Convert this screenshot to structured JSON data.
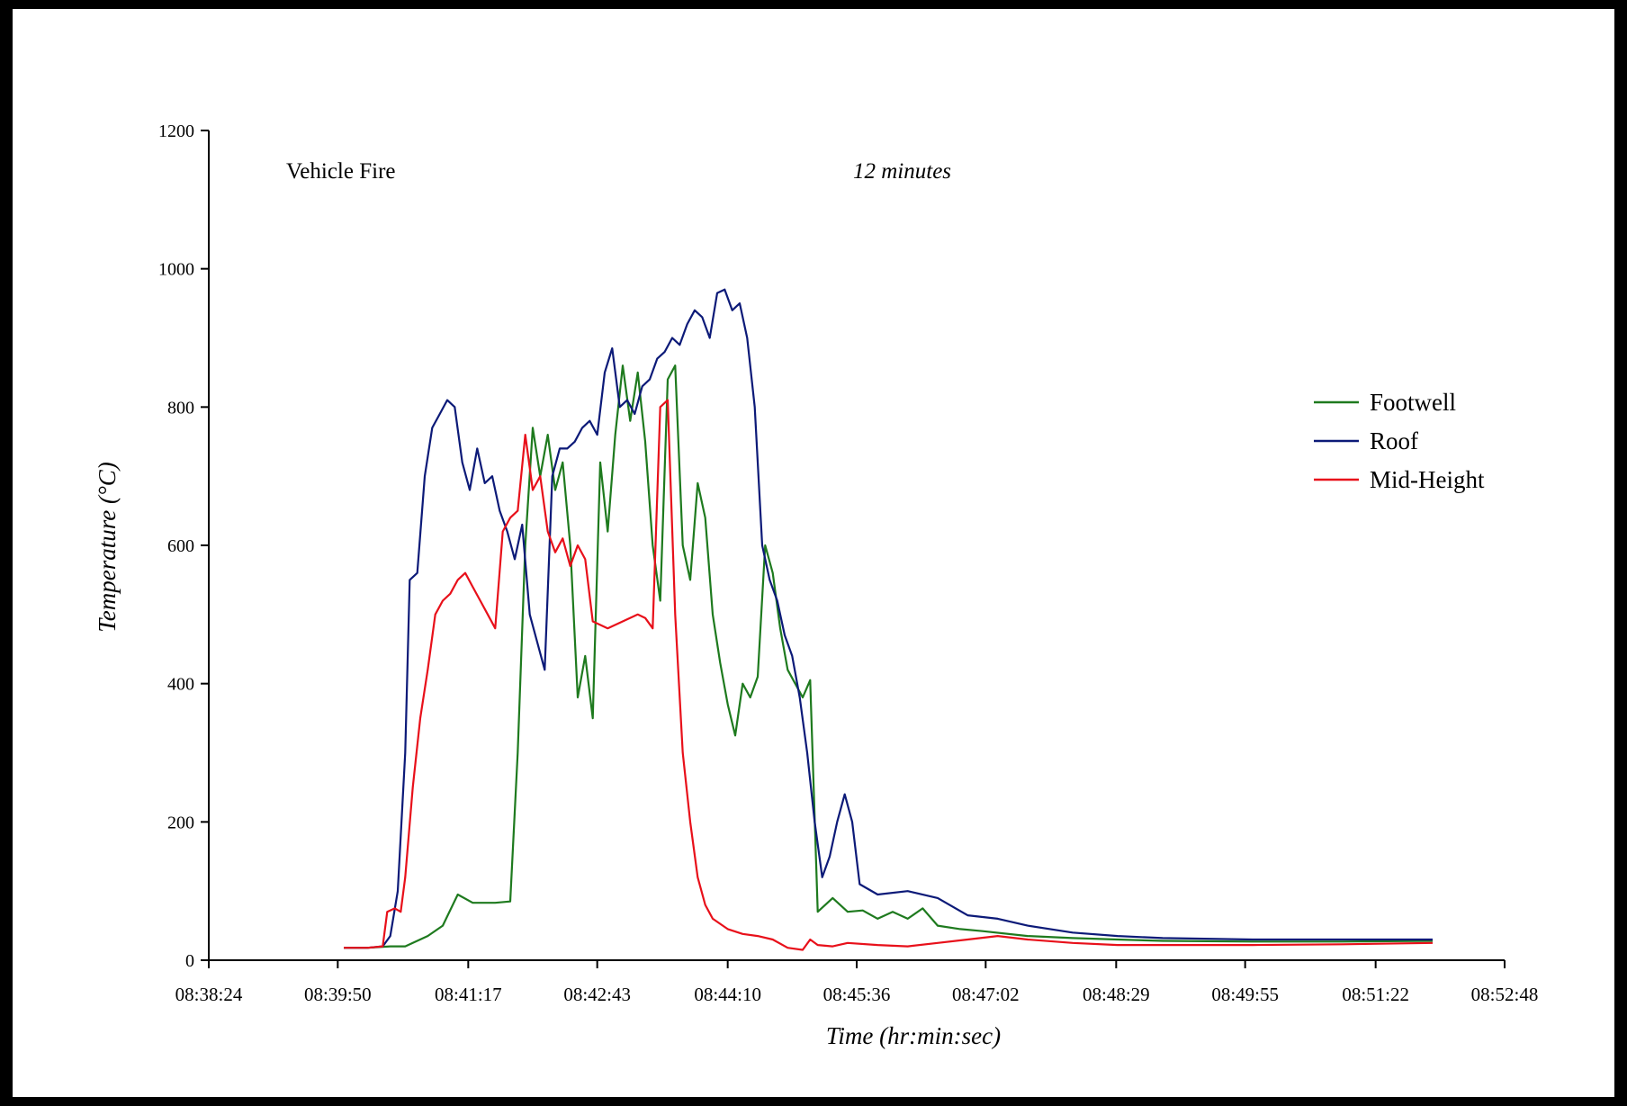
{
  "colors": {
    "Footwell": "#1e7a1e",
    "Roof": "#0c1a78",
    "Mid-Height": "#e8101a",
    "axis": "#000000",
    "frame": "#000000"
  },
  "chart_data": {
    "type": "line",
    "title": "Vehicle Fire",
    "subtitle": "12 minutes",
    "xlabel": "Time (hr:min:sec)",
    "ylabel": "Temperature (°C)",
    "ylim": [
      0,
      1200
    ],
    "yticks": [
      "0",
      "200",
      "400",
      "600",
      "800",
      "1000",
      "1200"
    ],
    "xticks": [
      "08:38:24",
      "08:39:50",
      "08:41:17",
      "08:42:43",
      "08:44:10",
      "08:45:36",
      "08:47:02",
      "08:48:29",
      "08:49:55",
      "08:51:22",
      "08:52:48"
    ],
    "xlim": [
      "08:38:24",
      "08:52:48"
    ],
    "grid": false,
    "legend_position": "right",
    "series": [
      {
        "name": "Footwell",
        "points": [
          [
            "08:39:54",
            18
          ],
          [
            "08:40:10",
            18
          ],
          [
            "08:40:25",
            20
          ],
          [
            "08:40:35",
            20
          ],
          [
            "08:40:50",
            35
          ],
          [
            "08:41:00",
            50
          ],
          [
            "08:41:10",
            95
          ],
          [
            "08:41:20",
            83
          ],
          [
            "08:41:35",
            83
          ],
          [
            "08:41:45",
            85
          ],
          [
            "08:41:50",
            300
          ],
          [
            "08:41:55",
            600
          ],
          [
            "08:42:00",
            770
          ],
          [
            "08:42:05",
            700
          ],
          [
            "08:42:10",
            760
          ],
          [
            "08:42:15",
            680
          ],
          [
            "08:42:20",
            720
          ],
          [
            "08:42:25",
            600
          ],
          [
            "08:42:30",
            380
          ],
          [
            "08:42:35",
            440
          ],
          [
            "08:42:40",
            350
          ],
          [
            "08:42:45",
            720
          ],
          [
            "08:42:50",
            620
          ],
          [
            "08:42:55",
            760
          ],
          [
            "08:43:00",
            860
          ],
          [
            "08:43:05",
            780
          ],
          [
            "08:43:10",
            850
          ],
          [
            "08:43:15",
            750
          ],
          [
            "08:43:20",
            600
          ],
          [
            "08:43:25",
            520
          ],
          [
            "08:43:30",
            840
          ],
          [
            "08:43:35",
            860
          ],
          [
            "08:43:40",
            600
          ],
          [
            "08:43:45",
            550
          ],
          [
            "08:43:50",
            690
          ],
          [
            "08:43:55",
            640
          ],
          [
            "08:44:00",
            500
          ],
          [
            "08:44:05",
            430
          ],
          [
            "08:44:10",
            370
          ],
          [
            "08:44:15",
            325
          ],
          [
            "08:44:20",
            400
          ],
          [
            "08:44:25",
            380
          ],
          [
            "08:44:30",
            410
          ],
          [
            "08:44:35",
            600
          ],
          [
            "08:44:40",
            560
          ],
          [
            "08:44:45",
            480
          ],
          [
            "08:44:50",
            420
          ],
          [
            "08:44:55",
            400
          ],
          [
            "08:45:00",
            380
          ],
          [
            "08:45:05",
            405
          ],
          [
            "08:45:10",
            70
          ],
          [
            "08:45:20",
            90
          ],
          [
            "08:45:30",
            70
          ],
          [
            "08:45:40",
            72
          ],
          [
            "08:45:50",
            60
          ],
          [
            "08:46:00",
            70
          ],
          [
            "08:46:10",
            60
          ],
          [
            "08:46:20",
            75
          ],
          [
            "08:46:30",
            50
          ],
          [
            "08:46:45",
            45
          ],
          [
            "08:47:00",
            42
          ],
          [
            "08:47:30",
            35
          ],
          [
            "08:48:00",
            32
          ],
          [
            "08:48:30",
            30
          ],
          [
            "08:49:00",
            28
          ],
          [
            "08:50:00",
            27
          ],
          [
            "08:51:00",
            27
          ],
          [
            "08:52:00",
            28
          ]
        ]
      },
      {
        "name": "Roof",
        "points": [
          [
            "08:39:54",
            18
          ],
          [
            "08:40:10",
            18
          ],
          [
            "08:40:20",
            20
          ],
          [
            "08:40:25",
            35
          ],
          [
            "08:40:30",
            100
          ],
          [
            "08:40:35",
            300
          ],
          [
            "08:40:38",
            550
          ],
          [
            "08:40:43",
            560
          ],
          [
            "08:40:48",
            700
          ],
          [
            "08:40:53",
            770
          ],
          [
            "08:40:58",
            790
          ],
          [
            "08:41:03",
            810
          ],
          [
            "08:41:08",
            800
          ],
          [
            "08:41:13",
            720
          ],
          [
            "08:41:18",
            680
          ],
          [
            "08:41:23",
            740
          ],
          [
            "08:41:28",
            690
          ],
          [
            "08:41:33",
            700
          ],
          [
            "08:41:38",
            650
          ],
          [
            "08:41:43",
            620
          ],
          [
            "08:41:48",
            580
          ],
          [
            "08:41:53",
            630
          ],
          [
            "08:41:58",
            500
          ],
          [
            "08:42:03",
            460
          ],
          [
            "08:42:08",
            420
          ],
          [
            "08:42:13",
            700
          ],
          [
            "08:42:18",
            740
          ],
          [
            "08:42:23",
            740
          ],
          [
            "08:42:28",
            750
          ],
          [
            "08:42:33",
            770
          ],
          [
            "08:42:38",
            780
          ],
          [
            "08:42:43",
            760
          ],
          [
            "08:42:48",
            850
          ],
          [
            "08:42:53",
            885
          ],
          [
            "08:42:58",
            800
          ],
          [
            "08:43:03",
            810
          ],
          [
            "08:43:08",
            790
          ],
          [
            "08:43:13",
            830
          ],
          [
            "08:43:18",
            840
          ],
          [
            "08:43:23",
            870
          ],
          [
            "08:43:28",
            880
          ],
          [
            "08:43:33",
            900
          ],
          [
            "08:43:38",
            890
          ],
          [
            "08:43:43",
            920
          ],
          [
            "08:43:48",
            940
          ],
          [
            "08:43:53",
            930
          ],
          [
            "08:43:58",
            900
          ],
          [
            "08:44:03",
            965
          ],
          [
            "08:44:08",
            970
          ],
          [
            "08:44:13",
            940
          ],
          [
            "08:44:18",
            950
          ],
          [
            "08:44:23",
            900
          ],
          [
            "08:44:28",
            800
          ],
          [
            "08:44:33",
            600
          ],
          [
            "08:44:38",
            550
          ],
          [
            "08:44:43",
            520
          ],
          [
            "08:44:48",
            470
          ],
          [
            "08:44:53",
            440
          ],
          [
            "08:44:58",
            380
          ],
          [
            "08:45:03",
            300
          ],
          [
            "08:45:08",
            200
          ],
          [
            "08:45:13",
            120
          ],
          [
            "08:45:18",
            150
          ],
          [
            "08:45:23",
            200
          ],
          [
            "08:45:28",
            240
          ],
          [
            "08:45:33",
            200
          ],
          [
            "08:45:38",
            110
          ],
          [
            "08:45:50",
            95
          ],
          [
            "08:46:10",
            100
          ],
          [
            "08:46:30",
            90
          ],
          [
            "08:46:50",
            65
          ],
          [
            "08:47:10",
            60
          ],
          [
            "08:47:30",
            50
          ],
          [
            "08:48:00",
            40
          ],
          [
            "08:48:30",
            35
          ],
          [
            "08:49:00",
            32
          ],
          [
            "08:50:00",
            30
          ],
          [
            "08:51:00",
            30
          ],
          [
            "08:52:00",
            30
          ]
        ]
      },
      {
        "name": "Mid-Height",
        "points": [
          [
            "08:39:54",
            18
          ],
          [
            "08:40:10",
            18
          ],
          [
            "08:40:20",
            20
          ],
          [
            "08:40:23",
            70
          ],
          [
            "08:40:28",
            75
          ],
          [
            "08:40:32",
            70
          ],
          [
            "08:40:35",
            120
          ],
          [
            "08:40:40",
            250
          ],
          [
            "08:40:45",
            350
          ],
          [
            "08:40:50",
            420
          ],
          [
            "08:40:55",
            500
          ],
          [
            "08:41:00",
            520
          ],
          [
            "08:41:05",
            530
          ],
          [
            "08:41:10",
            550
          ],
          [
            "08:41:15",
            560
          ],
          [
            "08:41:20",
            540
          ],
          [
            "08:41:25",
            520
          ],
          [
            "08:41:30",
            500
          ],
          [
            "08:41:35",
            480
          ],
          [
            "08:41:40",
            620
          ],
          [
            "08:41:45",
            640
          ],
          [
            "08:41:50",
            650
          ],
          [
            "08:41:55",
            760
          ],
          [
            "08:42:00",
            680
          ],
          [
            "08:42:05",
            700
          ],
          [
            "08:42:10",
            620
          ],
          [
            "08:42:15",
            590
          ],
          [
            "08:42:20",
            610
          ],
          [
            "08:42:25",
            570
          ],
          [
            "08:42:30",
            600
          ],
          [
            "08:42:35",
            580
          ],
          [
            "08:42:40",
            490
          ],
          [
            "08:42:50",
            480
          ],
          [
            "08:43:00",
            490
          ],
          [
            "08:43:10",
            500
          ],
          [
            "08:43:15",
            495
          ],
          [
            "08:43:20",
            480
          ],
          [
            "08:43:25",
            800
          ],
          [
            "08:43:30",
            810
          ],
          [
            "08:43:35",
            500
          ],
          [
            "08:43:40",
            300
          ],
          [
            "08:43:45",
            200
          ],
          [
            "08:43:50",
            120
          ],
          [
            "08:43:55",
            80
          ],
          [
            "08:44:00",
            60
          ],
          [
            "08:44:10",
            45
          ],
          [
            "08:44:20",
            38
          ],
          [
            "08:44:30",
            35
          ],
          [
            "08:44:40",
            30
          ],
          [
            "08:44:50",
            18
          ],
          [
            "08:45:00",
            15
          ],
          [
            "08:45:05",
            30
          ],
          [
            "08:45:10",
            22
          ],
          [
            "08:45:20",
            20
          ],
          [
            "08:45:30",
            25
          ],
          [
            "08:45:50",
            22
          ],
          [
            "08:46:10",
            20
          ],
          [
            "08:46:30",
            25
          ],
          [
            "08:46:50",
            30
          ],
          [
            "08:47:10",
            35
          ],
          [
            "08:47:30",
            30
          ],
          [
            "08:48:00",
            25
          ],
          [
            "08:48:30",
            22
          ],
          [
            "08:49:00",
            22
          ],
          [
            "08:50:00",
            22
          ],
          [
            "08:51:00",
            23
          ],
          [
            "08:52:00",
            25
          ]
        ]
      }
    ]
  }
}
